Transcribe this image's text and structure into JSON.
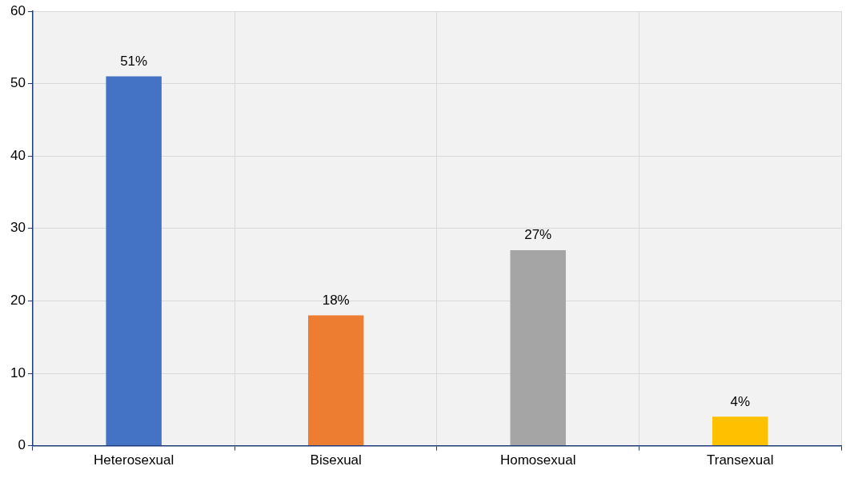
{
  "chart_data": {
    "type": "bar",
    "categories": [
      "Heterosexual",
      "Bisexual",
      "Homosexual",
      "Transexual"
    ],
    "values": [
      51,
      18,
      27,
      4
    ],
    "colors": [
      "#4472c4",
      "#ed7d31",
      "#a5a5a5",
      "#ffc000"
    ],
    "value_labels": [
      "51%",
      "18%",
      "27%",
      "4%"
    ],
    "ylim": [
      0,
      60
    ],
    "yticks": [
      0,
      10,
      20,
      30,
      40,
      50,
      60
    ],
    "grid": true,
    "legend": false
  }
}
